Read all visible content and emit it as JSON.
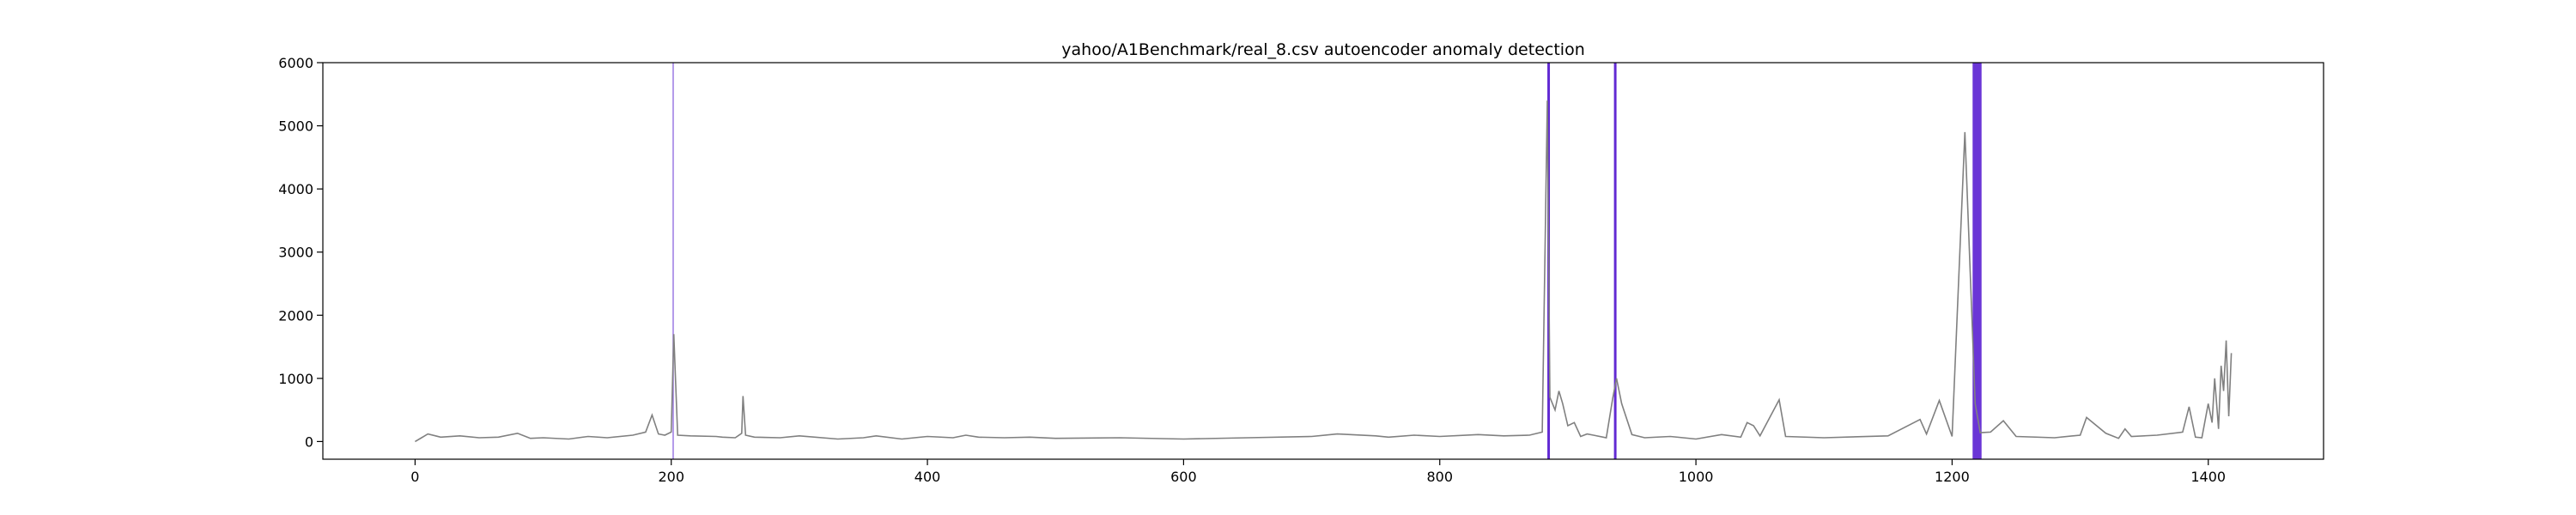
{
  "chart_data": {
    "type": "line",
    "title": "yahoo/A1Benchmark/real_8.csv autoencoder anomaly detection",
    "xlabel": "",
    "ylabel": "",
    "xlim": [
      -72,
      1490
    ],
    "ylim": [
      -280,
      6000
    ],
    "x_ticks": [
      0,
      200,
      400,
      600,
      800,
      1000,
      1200,
      1400
    ],
    "y_ticks": [
      0,
      1000,
      2000,
      3000,
      4000,
      5000,
      6000
    ],
    "grid": false,
    "colors": {
      "series": "#808080",
      "anomaly": "#5a1fd1",
      "axes": "#000000"
    },
    "series": [
      {
        "x": [
          0,
          5,
          10,
          20,
          35,
          50,
          65,
          80,
          90,
          100,
          120,
          135,
          150,
          170,
          180,
          185,
          190,
          195,
          200,
          202,
          205,
          215,
          235,
          240,
          250,
          255,
          256,
          258,
          265,
          285,
          300,
          330,
          350,
          360,
          380,
          400,
          420,
          430,
          440,
          460,
          480,
          500,
          550,
          600,
          650,
          700,
          720,
          750,
          760,
          780,
          800,
          830,
          850,
          870,
          880,
          884,
          886,
          890,
          893,
          896,
          900,
          905,
          910,
          915,
          920,
          930,
          935,
          938,
          942,
          950,
          960,
          980,
          1000,
          1020,
          1035,
          1040,
          1045,
          1050,
          1065,
          1070,
          1100,
          1150,
          1175,
          1180,
          1190,
          1200,
          1210,
          1218,
          1222,
          1230,
          1240,
          1250,
          1280,
          1300,
          1305,
          1320,
          1330,
          1335,
          1340,
          1360,
          1380,
          1385,
          1390,
          1395,
          1400,
          1403,
          1405,
          1408,
          1410,
          1412,
          1414,
          1416,
          1418
        ],
        "y": [
          0,
          60,
          120,
          70,
          90,
          60,
          70,
          130,
          50,
          60,
          40,
          80,
          60,
          100,
          150,
          420,
          120,
          100,
          150,
          1700,
          100,
          90,
          80,
          70,
          60,
          130,
          720,
          100,
          70,
          60,
          90,
          40,
          60,
          90,
          40,
          80,
          60,
          100,
          70,
          60,
          70,
          50,
          60,
          40,
          60,
          80,
          120,
          90,
          70,
          100,
          80,
          110,
          90,
          100,
          150,
          5400,
          700,
          500,
          800,
          600,
          250,
          300,
          80,
          120,
          100,
          60,
          680,
          1000,
          600,
          110,
          60,
          80,
          40,
          110,
          70,
          300,
          250,
          90,
          660,
          80,
          60,
          90,
          350,
          120,
          650,
          80,
          4900,
          600,
          140,
          150,
          330,
          80,
          60,
          100,
          380,
          130,
          50,
          200,
          80,
          100,
          150,
          550,
          70,
          60,
          600,
          300,
          1000,
          200,
          1200,
          800,
          1600,
          400,
          1400
        ]
      }
    ],
    "anomalies": [
      {
        "x_start": 201,
        "x_end": 202,
        "opacity": 0.6
      },
      {
        "x_start": 884,
        "x_end": 886,
        "opacity": 0.95
      },
      {
        "x_start": 936,
        "x_end": 938,
        "opacity": 0.95
      },
      {
        "x_start": 1216,
        "x_end": 1223,
        "opacity": 0.9
      }
    ]
  }
}
